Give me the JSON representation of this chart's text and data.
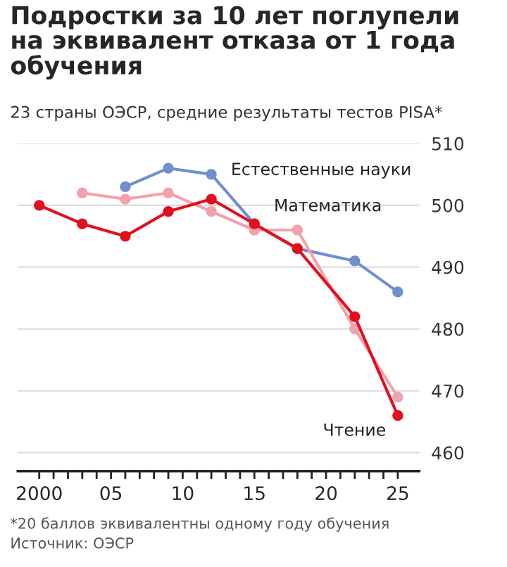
{
  "chart_data": {
    "type": "line",
    "title": "Подростки за 10 лет поглупели\nна эквивалент отказа от 1 года\nобучения",
    "subtitle": "23 страны ОЭСР, средние результаты тестов PISA*",
    "x": [
      2000,
      2003,
      2006,
      2009,
      2012,
      2015,
      2018,
      2022,
      2025
    ],
    "series": [
      {
        "name": "Естественные науки",
        "color": "#6f8fd0",
        "values": [
          null,
          null,
          503,
          506,
          505,
          497,
          493,
          491,
          486
        ]
      },
      {
        "name": "Математика",
        "color": "#f2a2aa",
        "values": [
          null,
          502,
          501,
          502,
          499,
          496,
          496,
          480,
          469
        ]
      },
      {
        "name": "Чтение",
        "color": "#e0101e",
        "values": [
          500,
          497,
          495,
          499,
          501,
          497,
          493,
          482,
          466
        ]
      }
    ],
    "xlim": [
      1998.5,
      2026.5
    ],
    "xticks": [
      {
        "value": 2000,
        "label": "2000"
      },
      {
        "value": 2001,
        "label": null
      },
      {
        "value": 2002,
        "label": null
      },
      {
        "value": 2003,
        "label": null
      },
      {
        "value": 2004,
        "label": null
      },
      {
        "value": 2005,
        "label": "05"
      },
      {
        "value": 2006,
        "label": null
      },
      {
        "value": 2007,
        "label": null
      },
      {
        "value": 2008,
        "label": null
      },
      {
        "value": 2009,
        "label": null
      },
      {
        "value": 2010,
        "label": "10"
      },
      {
        "value": 2011,
        "label": null
      },
      {
        "value": 2012,
        "label": null
      },
      {
        "value": 2013,
        "label": null
      },
      {
        "value": 2014,
        "label": null
      },
      {
        "value": 2015,
        "label": "15"
      },
      {
        "value": 2016,
        "label": null
      },
      {
        "value": 2017,
        "label": null
      },
      {
        "value": 2018,
        "label": null
      },
      {
        "value": 2019,
        "label": null
      },
      {
        "value": 2020,
        "label": "20"
      },
      {
        "value": 2021,
        "label": null
      },
      {
        "value": 2022,
        "label": null
      },
      {
        "value": 2023,
        "label": null
      },
      {
        "value": 2024,
        "label": null
      },
      {
        "value": 2025,
        "label": "25"
      }
    ],
    "ylim": [
      457,
      510
    ],
    "yticks": [
      460,
      470,
      480,
      490,
      500,
      510
    ],
    "grid": "y",
    "legend": false,
    "marker": "circle",
    "line_style": "solid",
    "annotations": [
      "*20 баллов эквивалентны одному году обучения",
      "Источник: ОЭСР"
    ]
  }
}
